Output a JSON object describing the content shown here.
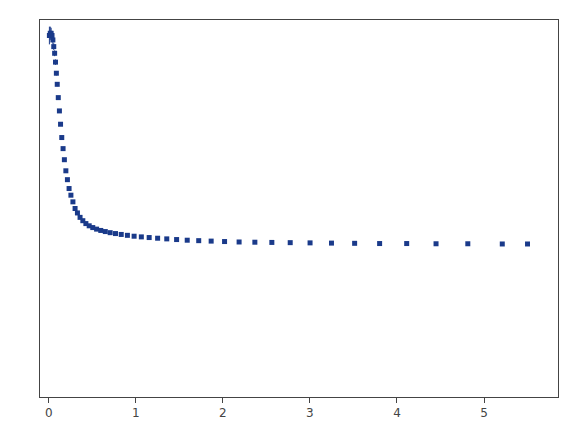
{
  "chart_data": {
    "type": "scatter",
    "marker": "square",
    "color": "#1a3a8a",
    "xlim": [
      -0.1,
      5.85
    ],
    "ylim": [
      -0.55,
      1.15
    ],
    "xticks": [
      0,
      1,
      2,
      3,
      4,
      5
    ],
    "yticks": [],
    "tick_labels": "x",
    "grid": false,
    "x": [
      0.008,
      0.018,
      0.028,
      0.038,
      0.048,
      0.058,
      0.068,
      0.078,
      0.088,
      0.098,
      0.11,
      0.123,
      0.136,
      0.15,
      0.165,
      0.18,
      0.197,
      0.215,
      0.234,
      0.255,
      0.278,
      0.303,
      0.33,
      0.36,
      0.392,
      0.427,
      0.465,
      0.506,
      0.55,
      0.598,
      0.65,
      0.706,
      0.767,
      0.833,
      0.904,
      0.981,
      1.064,
      1.154,
      1.251,
      1.356,
      1.469,
      1.591,
      1.723,
      1.866,
      2.02,
      2.187,
      2.368,
      2.563,
      2.774,
      3.002,
      3.248,
      3.514,
      3.801,
      4.112,
      4.449,
      4.814,
      5.21,
      5.5
    ],
    "values": [
      1.08,
      1.09,
      1.09,
      1.08,
      1.06,
      1.03,
      1.0,
      0.96,
      0.91,
      0.86,
      0.8,
      0.74,
      0.68,
      0.62,
      0.57,
      0.52,
      0.47,
      0.43,
      0.39,
      0.36,
      0.33,
      0.3,
      0.28,
      0.26,
      0.245,
      0.232,
      0.222,
      0.214,
      0.207,
      0.201,
      0.196,
      0.191,
      0.187,
      0.183,
      0.179,
      0.175,
      0.172,
      0.169,
      0.166,
      0.163,
      0.16,
      0.157,
      0.155,
      0.153,
      0.151,
      0.149,
      0.148,
      0.147,
      0.146,
      0.145,
      0.144,
      0.143,
      0.142,
      0.142,
      0.141,
      0.141,
      0.14,
      0.14
    ],
    "errors": [
      0.04,
      0.03,
      0.025,
      0.02,
      0.018,
      0.015,
      0.013,
      0.012,
      0.01,
      0.009,
      0.008,
      0.007,
      0.006,
      0.005,
      0.005,
      0.004,
      0.004,
      0.003,
      0.003,
      0.003,
      0.003,
      0.002,
      0.002,
      0.002,
      0.002,
      0.002,
      0.002,
      0.002,
      0.002,
      0.002,
      0.002,
      0.002,
      0.002,
      0.002,
      0.002,
      0.002,
      0.002,
      0.002,
      0.002,
      0.002,
      0.002,
      0.002,
      0.002,
      0.002,
      0.002,
      0.002,
      0.002,
      0.002,
      0.002,
      0.002,
      0.002,
      0.002,
      0.002,
      0.002,
      0.002,
      0.002,
      0.002,
      0.002
    ]
  }
}
